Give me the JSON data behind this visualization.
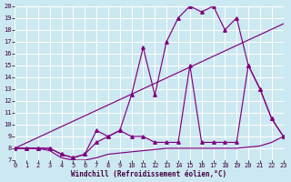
{
  "xlabel": "Windchill (Refroidissement éolien,°C)",
  "bg_color": "#cce8f0",
  "line_color": "#800080",
  "xlim": [
    0,
    23
  ],
  "ylim": [
    7,
    20
  ],
  "xticks": [
    0,
    1,
    2,
    3,
    4,
    5,
    6,
    7,
    8,
    9,
    10,
    11,
    12,
    13,
    14,
    15,
    16,
    17,
    18,
    19,
    20,
    21,
    22,
    23
  ],
  "yticks": [
    7,
    8,
    9,
    10,
    11,
    12,
    13,
    14,
    15,
    16,
    17,
    18,
    19,
    20
  ],
  "line1_x": [
    0,
    1,
    2,
    3,
    4,
    5,
    6,
    7,
    8,
    9,
    10,
    11,
    12,
    13,
    14,
    15,
    16,
    17,
    18,
    19,
    20,
    21,
    22,
    23
  ],
  "line1_y": [
    8.0,
    8.0,
    8.0,
    8.0,
    7.5,
    7.2,
    7.5,
    8.5,
    9.0,
    9.5,
    12.5,
    16.5,
    12.5,
    17.0,
    19.0,
    20.0,
    19.5,
    20.0,
    18.0,
    19.0,
    15.0,
    13.0,
    10.5,
    9.0
  ],
  "line2_x": [
    0,
    1,
    2,
    3,
    4,
    5,
    6,
    7,
    8,
    9,
    10,
    11,
    12,
    13,
    14,
    15,
    16,
    17,
    18,
    19,
    20,
    21,
    22,
    23
  ],
  "line2_y": [
    8.0,
    8.0,
    8.0,
    8.0,
    7.5,
    7.2,
    7.5,
    9.5,
    9.0,
    9.5,
    9.0,
    9.0,
    8.5,
    8.5,
    8.5,
    15.0,
    8.5,
    8.5,
    8.5,
    8.5,
    15.0,
    13.0,
    10.5,
    9.0
  ],
  "line3_x": [
    0,
    1,
    2,
    3,
    4,
    5,
    6,
    7,
    8,
    9,
    10,
    11,
    12,
    13,
    14,
    15,
    16,
    17,
    18,
    19,
    20,
    21,
    22,
    23
  ],
  "line3_y": [
    8.0,
    8.0,
    8.0,
    7.8,
    7.2,
    7.0,
    7.0,
    7.2,
    7.5,
    7.6,
    7.7,
    7.8,
    7.9,
    8.0,
    8.0,
    8.0,
    8.0,
    8.0,
    8.0,
    8.0,
    8.1,
    8.2,
    8.5,
    9.0
  ],
  "line4_x": [
    0,
    23
  ],
  "line4_y": [
    8.0,
    18.5
  ]
}
